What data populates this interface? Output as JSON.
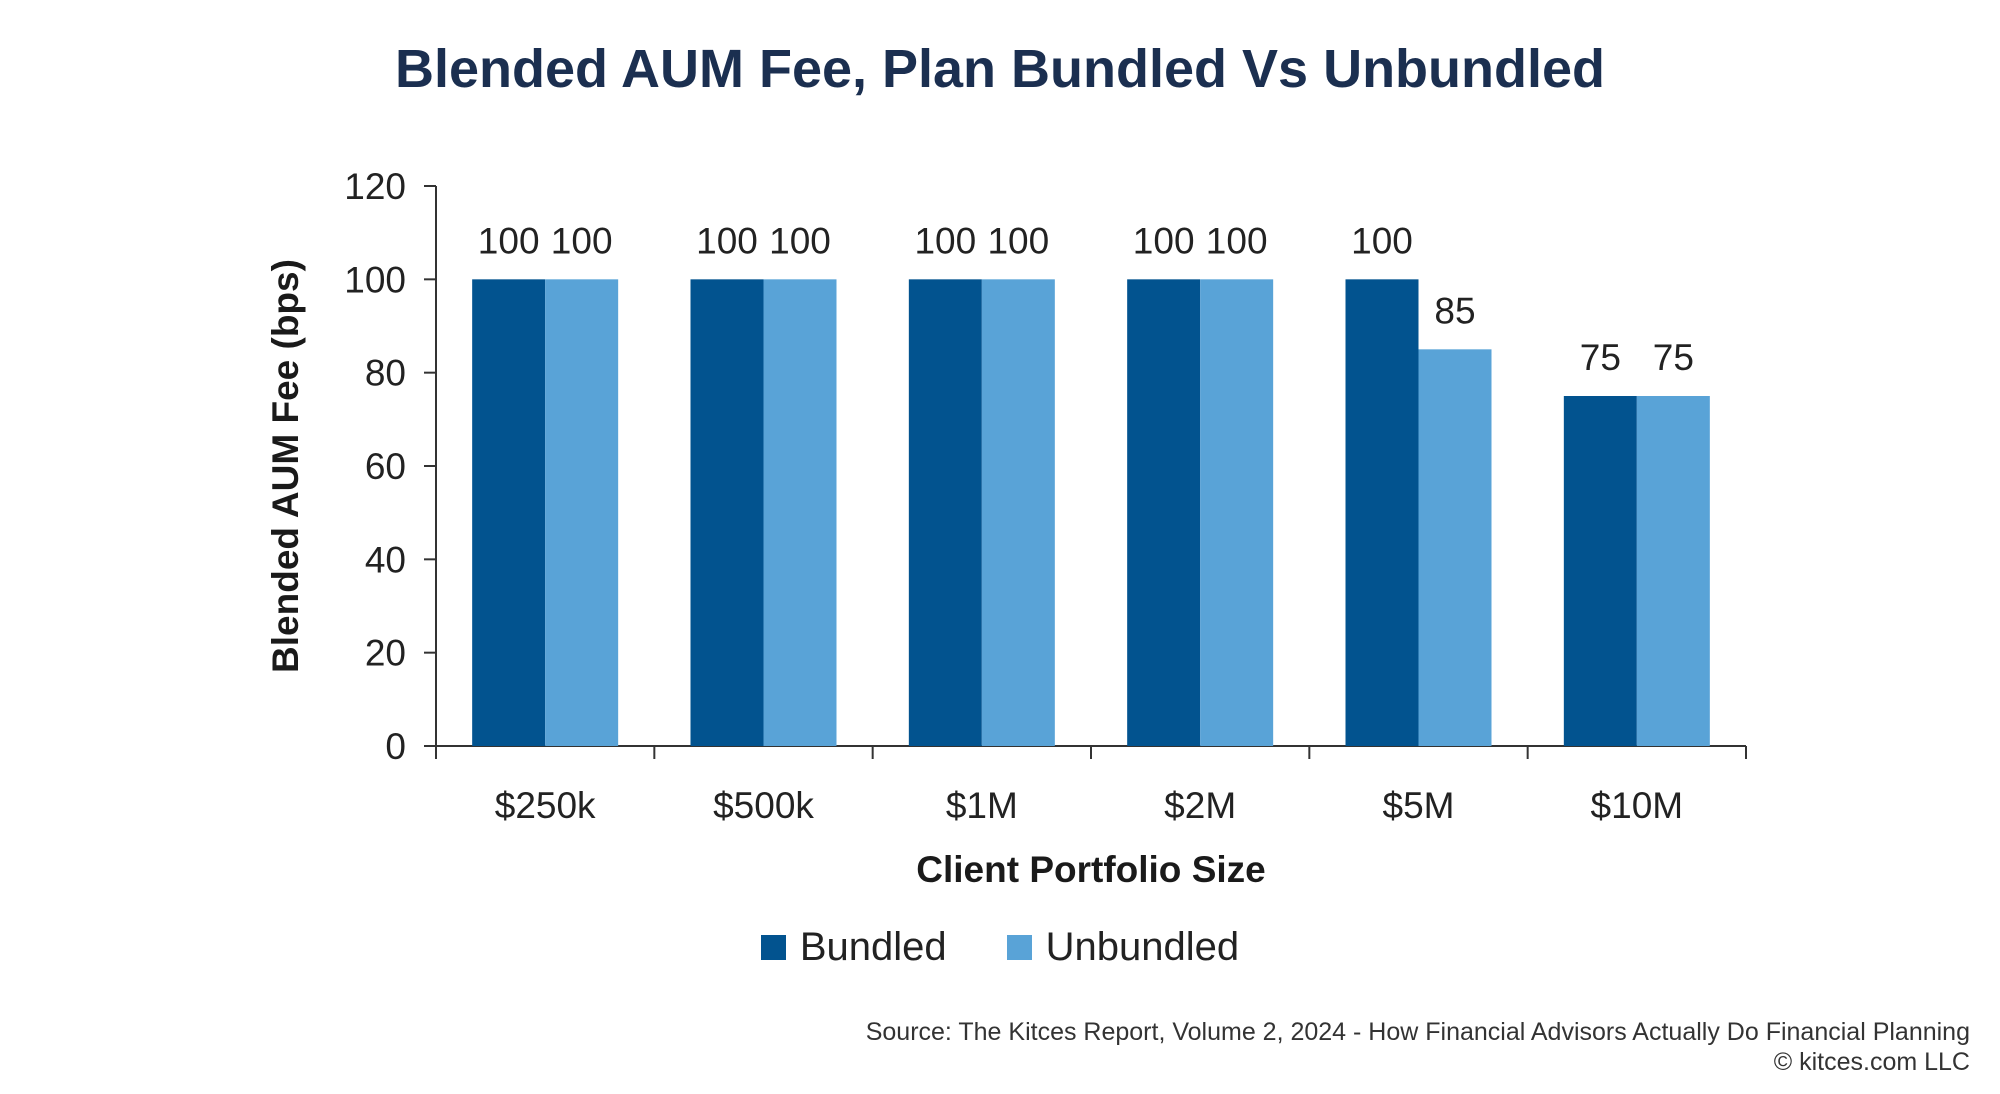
{
  "chart_data": {
    "type": "bar",
    "title": "Blended AUM Fee, Plan Bundled Vs Unbundled",
    "xlabel": "Client Portfolio Size",
    "ylabel": "Blended AUM Fee (bps)",
    "categories": [
      "$250k",
      "$500k",
      "$1M",
      "$2M",
      "$5M",
      "$10M"
    ],
    "series": [
      {
        "name": "Bundled",
        "color": "#02538f",
        "values": [
          100,
          100,
          100,
          100,
          100,
          75
        ]
      },
      {
        "name": "Unbundled",
        "color": "#59a3d7",
        "values": [
          100,
          100,
          100,
          100,
          85,
          75
        ]
      }
    ],
    "ylim": [
      0,
      120
    ],
    "yticks": [
      0,
      20,
      40,
      60,
      80,
      100,
      120
    ],
    "grid": false,
    "legend": "bottom"
  },
  "footer": {
    "source": "Source: The Kitces Report, Volume 2, 2024 - How Financial Advisors Actually Do Financial Planning",
    "copyright": "© kitces.com LLC"
  }
}
